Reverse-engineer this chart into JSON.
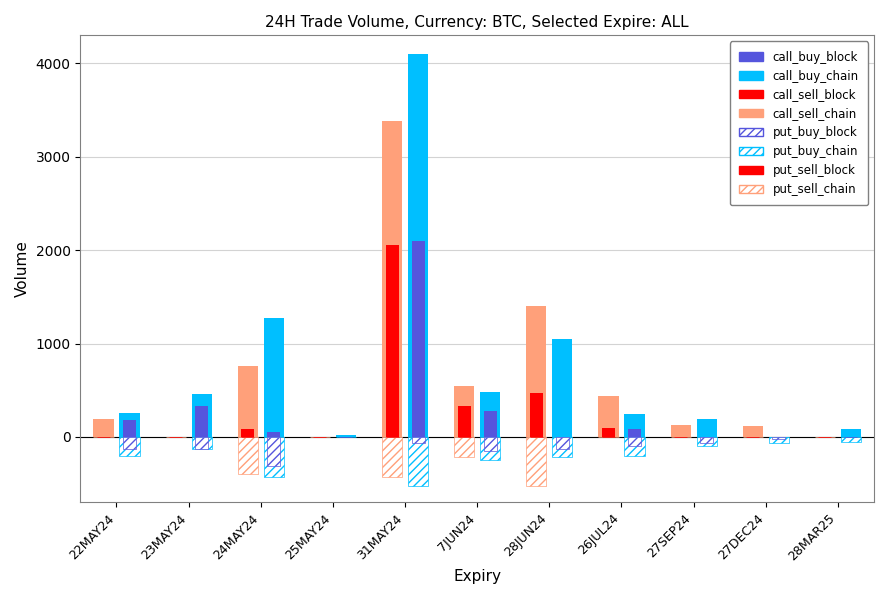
{
  "title": "24H Trade Volume, Currency: BTC, Selected Expire: ALL",
  "xlabel": "Expiry",
  "ylabel": "Volume",
  "categories": [
    "22MAY24",
    "23MAY24",
    "24MAY24",
    "25MAY24",
    "31MAY24",
    "7JUN24",
    "28JUN24",
    "26JUL24",
    "27SEP24",
    "27DEC24",
    "28MAR25"
  ],
  "call_buy_block": [
    180,
    330,
    50,
    0,
    2100,
    280,
    0,
    80,
    0,
    0,
    0
  ],
  "call_buy_chain": [
    260,
    460,
    1270,
    20,
    4100,
    480,
    1050,
    250,
    190,
    0,
    80
  ],
  "call_sell_block": [
    0,
    0,
    80,
    0,
    2060,
    330,
    470,
    100,
    0,
    0,
    0
  ],
  "call_sell_chain": [
    190,
    0,
    760,
    0,
    3380,
    550,
    1400,
    440,
    130,
    120,
    0
  ],
  "put_buy_block": [
    -130,
    -130,
    -310,
    0,
    -70,
    -150,
    -130,
    -100,
    -60,
    -20,
    0
  ],
  "put_buy_chain": [
    -200,
    -130,
    -430,
    0,
    -530,
    -250,
    -210,
    -200,
    -100,
    -60,
    -50
  ],
  "put_sell_block": [
    0,
    0,
    0,
    0,
    0,
    0,
    0,
    0,
    0,
    0,
    0
  ],
  "put_sell_chain": [
    0,
    0,
    -400,
    0,
    -430,
    -220,
    -530,
    0,
    0,
    0,
    0
  ],
  "colors": {
    "call_buy_block": "#5555dd",
    "call_buy_chain": "#00bfff",
    "call_sell_block": "#ff0000",
    "call_sell_chain": "#ffa07a",
    "put_buy_block": "#5555dd",
    "put_buy_chain": "#00bfff",
    "put_sell_block": "#ff0000",
    "put_sell_chain": "#ffa07a"
  },
  "background_color": "#ffffff",
  "ylim": [
    -700,
    4300
  ],
  "figsize": [
    8.89,
    5.99
  ],
  "dpi": 100
}
